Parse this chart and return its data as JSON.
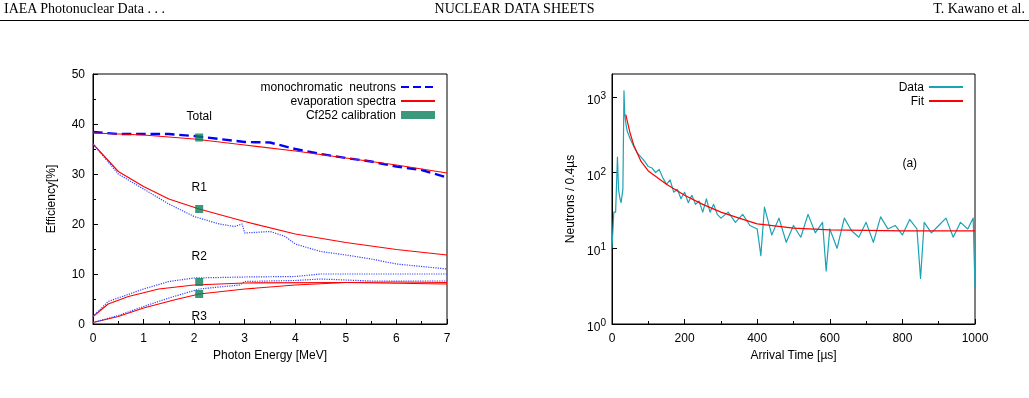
{
  "chart_data": [
    {
      "type": "other",
      "annotations": [
        "IAEA Photonuclear Data . . .",
        "NUCLEAR DATA SHEETS",
        "T. Kawano et al."
      ]
    },
    {
      "type": "line",
      "xlabel": "Photon Energy [MeV]",
      "ylabel": "Efficiency[%]",
      "xlim": [
        0,
        7
      ],
      "xticks": [
        0,
        1,
        2,
        3,
        4,
        5,
        6,
        7
      ],
      "ylim": [
        0,
        50
      ],
      "yticks": [
        0,
        10,
        20,
        30,
        40,
        50
      ],
      "grid": false,
      "legend": "top right",
      "annotations": [
        "Total",
        "R1",
        "R2",
        "R3"
      ],
      "series": [
        {
          "name": "monochromatic  neutrons",
          "color": "#0000ff",
          "line_style": "dashed",
          "marker": "none",
          "x": [
            0,
            0.5,
            1,
            1.5,
            2,
            2.5,
            3,
            3.5,
            4,
            4.5,
            5,
            5.5,
            6,
            6.5,
            7
          ],
          "values": [
            38.4,
            38,
            38,
            38,
            37.6,
            37,
            36.4,
            36.3,
            35,
            34,
            33.2,
            32.5,
            31.5,
            30.8,
            29.3
          ]
        },
        {
          "name": "evaporation spectra",
          "color": "#ff0000",
          "line_style": "solid",
          "marker": "none",
          "x": [
            0,
            1,
            2,
            3,
            4,
            5,
            6,
            7
          ],
          "values": [
            38.2,
            37.8,
            37,
            35.8,
            34.6,
            33.2,
            31.8,
            30.2
          ]
        },
        {
          "name": "Cf252 calibration",
          "type": "scatter",
          "color": "#0a7f5a",
          "marker": "square",
          "x": [
            2.1,
            2.1,
            2.1,
            2.1
          ],
          "values": [
            37.3,
            23,
            8.4,
            6
          ]
        },
        {
          "color": "#ff0000",
          "line_style": "solid",
          "marker": "none",
          "x": [
            0,
            0.5,
            1,
            1.5,
            2.1,
            3,
            4,
            5,
            6,
            7
          ],
          "values": [
            36,
            30.5,
            27.5,
            25,
            23,
            20.5,
            18,
            16.3,
            14.9,
            13.8
          ]
        },
        {
          "color": "#3344ff",
          "line_style": "dotted",
          "marker": "none",
          "x": [
            0,
            0.5,
            1,
            1.5,
            2,
            2.5,
            2.8,
            2.95,
            3,
            3.5,
            3.8,
            4,
            4.5,
            5,
            5.5,
            6,
            7
          ],
          "values": [
            36,
            30,
            27,
            24,
            21.5,
            20,
            19.5,
            20,
            18.2,
            18.5,
            17.5,
            16,
            14.5,
            13.8,
            13,
            12,
            11
          ]
        },
        {
          "color": "#ff0000",
          "line_style": "solid",
          "marker": "none",
          "x": [
            0,
            0.3,
            0.7,
            1.3,
            2,
            3,
            5,
            7
          ],
          "values": [
            1.5,
            4,
            5.5,
            7,
            7.8,
            8.2,
            8.3,
            8
          ]
        },
        {
          "color": "#3344ff",
          "line_style": "dotted",
          "marker": "none",
          "x": [
            0,
            0.3,
            1,
            1.5,
            2,
            3,
            4,
            4.5,
            7
          ],
          "values": [
            1.5,
            4.5,
            7,
            8.5,
            9.2,
            9.4,
            9.5,
            10,
            10
          ]
        },
        {
          "color": "#ff0000",
          "line_style": "solid",
          "marker": "none",
          "x": [
            0,
            0.5,
            1,
            1.6,
            2.1,
            3,
            4,
            5,
            6,
            7
          ],
          "values": [
            0.3,
            1.5,
            3.2,
            4.8,
            6,
            7,
            7.8,
            8.3,
            8.4,
            8.3
          ]
        },
        {
          "color": "#3344ff",
          "line_style": "dotted",
          "marker": "none",
          "x": [
            0,
            0.5,
            1,
            1.5,
            2.1,
            2.9,
            3,
            4,
            4.5,
            5.5,
            7
          ],
          "values": [
            0.3,
            1.7,
            3.5,
            5.2,
            7,
            7.8,
            8.5,
            8.7,
            9,
            8.6,
            8.6
          ]
        }
      ]
    },
    {
      "type": "line",
      "xlabel": "Arrival Time [µs]",
      "ylabel": "Neutrons / 0.4µs",
      "log": "y",
      "xlim": [
        0,
        1000
      ],
      "xticks": [
        0,
        200,
        400,
        600,
        800,
        1000
      ],
      "ylim": [
        1,
        2000
      ],
      "yticks": [
        {
          "value": 1,
          "label": "10$^{0}$"
        },
        {
          "value": 10,
          "label": "10$^{1}$"
        },
        {
          "value": 100,
          "label": "10$^{2}$"
        },
        {
          "value": 1000,
          "label": "10$^{3}$"
        }
      ],
      "grid": false,
      "legend": "top right",
      "annotations": [
        "(a)"
      ],
      "series": [
        {
          "name": "Data",
          "color": "#1aa3b5",
          "x": [
            0,
            5,
            10,
            15,
            18,
            22,
            25,
            30,
            33,
            35,
            38,
            42,
            50,
            60,
            70,
            80,
            90,
            100,
            110,
            120,
            130,
            140,
            150,
            160,
            170,
            180,
            190,
            200,
            210,
            220,
            230,
            240,
            250,
            260,
            270,
            280,
            290,
            300,
            320,
            340,
            360,
            380,
            400,
            410,
            420,
            440,
            460,
            480,
            500,
            520,
            540,
            560,
            580,
            590,
            600,
            620,
            640,
            660,
            680,
            700,
            720,
            740,
            760,
            780,
            800,
            820,
            840,
            850,
            860,
            880,
            900,
            920,
            940,
            960,
            980,
            995,
            1000
          ],
          "values": [
            10,
            30,
            30,
            160,
            60,
            45,
            40,
            60,
            1200,
            600,
            450,
            350,
            280,
            220,
            180,
            160,
            140,
            120,
            115,
            100,
            110,
            85,
            70,
            80,
            55,
            60,
            45,
            55,
            40,
            50,
            38,
            42,
            30,
            45,
            30,
            38,
            28,
            25,
            30,
            22,
            28,
            20,
            18,
            8,
            35,
            15,
            25,
            12,
            20,
            14,
            28,
            16,
            22,
            5,
            18,
            10,
            25,
            17,
            14,
            22,
            12,
            26,
            18,
            20,
            15,
            24,
            18,
            4,
            22,
            16,
            20,
            25,
            14,
            22,
            18,
            25,
            3
          ]
        },
        {
          "name": "Fit",
          "color": "#ff0000",
          "x": [
            38,
            50,
            60,
            80,
            100,
            150,
            200,
            250,
            300,
            350,
            400,
            500,
            600,
            800,
            1000
          ],
          "values": [
            580,
            330,
            230,
            140,
            105,
            70,
            50,
            38,
            30,
            25,
            21,
            18.5,
            17.5,
            17,
            17
          ]
        }
      ]
    }
  ]
}
